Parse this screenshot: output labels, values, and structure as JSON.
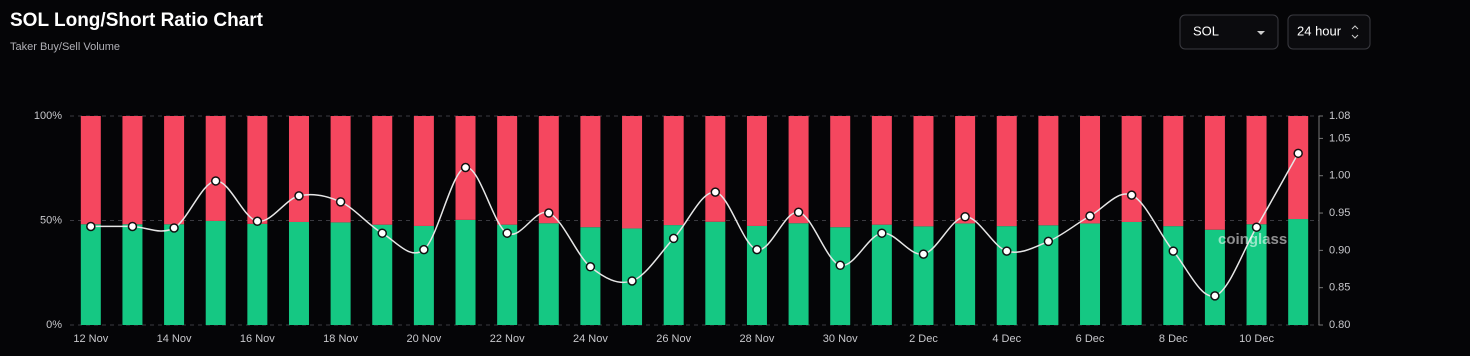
{
  "header": {
    "title": "SOL Long/Short Ratio Chart",
    "subtitle": "Taker Buy/Sell Volume",
    "symbol": "SOL",
    "interval": "24 hour"
  },
  "watermark": "coinglass",
  "chart_data": {
    "type": "bar",
    "stacked": true,
    "grid": true,
    "categories": [
      "12 Nov",
      null,
      "14 Nov",
      null,
      "16 Nov",
      null,
      "18 Nov",
      null,
      "20 Nov",
      null,
      "22 Nov",
      null,
      "24 Nov",
      null,
      "26 Nov",
      null,
      "28 Nov",
      null,
      "30 Nov",
      null,
      "2 Dec",
      null,
      "4 Dec",
      null,
      "6 Dec",
      null,
      "8 Dec",
      null,
      "10 Dec",
      null
    ],
    "ylim": [
      0,
      100
    ],
    "yticks": [
      {
        "value": 0,
        "label": "0%"
      },
      {
        "value": 50,
        "label": "50%"
      },
      {
        "value": 100,
        "label": "100%"
      }
    ],
    "y2lim": [
      0.8,
      1.08
    ],
    "y2ticks": [
      {
        "value": 0.8,
        "label": "0.80"
      },
      0.85,
      {
        "value": 0.9,
        "label": "0.90"
      },
      0.95,
      {
        "value": 1,
        "label": "1.00"
      },
      1.05,
      1.08
    ],
    "series": [
      {
        "color": "#15c883",
        "values": [
          48.2,
          48.2,
          48.2,
          49.8,
          48.4,
          49.3,
          49.1,
          48.0,
          47.4,
          50.3,
          48.0,
          48.7,
          46.8,
          46.2,
          47.8,
          49.4,
          47.4,
          48.7,
          46.8,
          48.0,
          47.2,
          48.6,
          47.3,
          47.7,
          48.6,
          49.3,
          47.3,
          45.6,
          48.2,
          50.7
        ]
      },
      {
        "color": "#f5475f",
        "values": [
          51.8,
          51.8,
          51.8,
          50.2,
          51.6,
          50.7,
          50.9,
          52.0,
          52.6,
          49.7,
          52.0,
          51.3,
          53.2,
          53.8,
          52.2,
          50.6,
          52.6,
          51.3,
          53.2,
          52.0,
          52.8,
          51.4,
          52.7,
          52.3,
          51.4,
          50.7,
          52.7,
          54.4,
          51.8,
          49.3
        ]
      },
      {
        "type": "line",
        "axis": "y2",
        "color": "#e6e6e6",
        "values": [
          0.932,
          0.932,
          0.93,
          0.993,
          0.939,
          0.973,
          0.965,
          0.923,
          0.901,
          1.011,
          0.923,
          0.95,
          0.878,
          0.859,
          0.916,
          0.978,
          0.901,
          0.951,
          0.88,
          0.923,
          0.895,
          0.945,
          0.899,
          0.912,
          0.946,
          0.974,
          0.899,
          0.839,
          0.931,
          1.03
        ]
      }
    ]
  }
}
